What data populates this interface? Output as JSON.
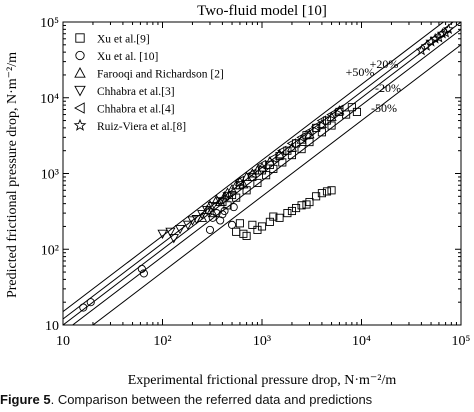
{
  "chart_data": {
    "type": "scatter",
    "title": "Two-fluid model [10]",
    "xlabel": "Experimental frictional pressure drop, N·m⁻²/m",
    "ylabel": "Predicted frictional pressure drop, N·m⁻²/m",
    "xscale": "log",
    "yscale": "log",
    "xlim": [
      10,
      100000
    ],
    "ylim": [
      10,
      100000
    ],
    "x_ticks": [
      10,
      100,
      1000,
      10000,
      100000
    ],
    "y_ticks": [
      10,
      100,
      1000,
      10000,
      100000
    ],
    "x_tick_labels": [
      "10",
      "10²",
      "10³",
      "10⁴",
      "10⁵"
    ],
    "y_tick_labels": [
      "10",
      "10²",
      "10³",
      "10⁴",
      "10⁵"
    ],
    "legend_position": "top-left",
    "reference_lines": [
      {
        "label": "+50%",
        "factor": 1.5
      },
      {
        "label": "+20%",
        "factor": 1.2
      },
      {
        "label": "-20%",
        "factor": 0.8
      },
      {
        "label": "-50%",
        "factor": 0.5
      }
    ],
    "series": [
      {
        "name": "Xu et al.[9]",
        "marker": "square",
        "points": [
          [
            400,
            420
          ],
          [
            450,
            380
          ],
          [
            500,
            520
          ],
          [
            550,
            480
          ],
          [
            600,
            700
          ],
          [
            700,
            600
          ],
          [
            800,
            900
          ],
          [
            900,
            750
          ],
          [
            1000,
            1100
          ],
          [
            1100,
            950
          ],
          [
            1200,
            1300
          ],
          [
            1300,
            1150
          ],
          [
            1500,
            1700
          ],
          [
            1600,
            1400
          ],
          [
            1800,
            2000
          ],
          [
            2000,
            1750
          ],
          [
            2200,
            2500
          ],
          [
            2500,
            2100
          ],
          [
            2800,
            3200
          ],
          [
            3000,
            2600
          ],
          [
            3500,
            4000
          ],
          [
            4000,
            3500
          ],
          [
            4500,
            5000
          ],
          [
            5000,
            4300
          ],
          [
            6000,
            6500
          ],
          [
            7000,
            6000
          ],
          [
            8000,
            7500
          ],
          [
            9000,
            6500
          ],
          [
            550,
            170
          ],
          [
            650,
            160
          ],
          [
            700,
            150
          ],
          [
            900,
            180
          ],
          [
            1200,
            230
          ],
          [
            1500,
            260
          ],
          [
            1800,
            300
          ],
          [
            2000,
            320
          ],
          [
            2500,
            380
          ],
          [
            3000,
            420
          ],
          [
            3500,
            500
          ],
          [
            4000,
            550
          ],
          [
            5000,
            600
          ],
          [
            800,
            210
          ],
          [
            1000,
            200
          ],
          [
            1300,
            270
          ],
          [
            2200,
            350
          ],
          [
            2800,
            390
          ],
          [
            600,
            220
          ],
          [
            4500,
            580
          ]
        ]
      },
      {
        "name": "Xu et al. [10]",
        "marker": "circle",
        "points": [
          [
            16,
            17
          ],
          [
            19,
            20
          ],
          [
            62,
            55
          ],
          [
            65,
            48
          ],
          [
            300,
            180
          ],
          [
            320,
            260
          ],
          [
            350,
            300
          ],
          [
            380,
            240
          ],
          [
            400,
            290
          ],
          [
            420,
            320
          ],
          [
            500,
            210
          ],
          [
            520,
            360
          ]
        ]
      },
      {
        "name": "Farooqi and Richardson [2]",
        "marker": "triangle-up",
        "points": [
          [
            250,
            260
          ],
          [
            280,
            330
          ],
          [
            300,
            380
          ],
          [
            320,
            300
          ],
          [
            350,
            450
          ],
          [
            380,
            420
          ],
          [
            420,
            500
          ],
          [
            450,
            560
          ],
          [
            500,
            620
          ],
          [
            550,
            700
          ],
          [
            600,
            780
          ],
          [
            650,
            720
          ],
          [
            700,
            900
          ],
          [
            800,
            1000
          ],
          [
            900,
            1100
          ],
          [
            1000,
            1200
          ],
          [
            1200,
            1450
          ],
          [
            1500,
            1800
          ],
          [
            2000,
            2200
          ],
          [
            2500,
            2800
          ],
          [
            3000,
            3300
          ],
          [
            4000,
            4500
          ],
          [
            5000,
            5600
          ],
          [
            6000,
            6800
          ]
        ]
      },
      {
        "name": "Chhabra et al.[3]",
        "marker": "triangle-down",
        "points": [
          [
            100,
            160
          ],
          [
            120,
            170
          ],
          [
            130,
            140
          ],
          [
            150,
            185
          ],
          [
            180,
            210
          ],
          [
            200,
            240
          ],
          [
            220,
            250
          ],
          [
            250,
            290
          ],
          [
            280,
            330
          ],
          [
            320,
            370
          ],
          [
            380,
            430
          ],
          [
            450,
            500
          ]
        ]
      },
      {
        "name": "Chhabra et al.[4]",
        "marker": "triangle-left",
        "points": [
          [
            600,
            800
          ],
          [
            800,
            1000
          ],
          [
            1000,
            1300
          ],
          [
            1300,
            1600
          ],
          [
            1600,
            2000
          ],
          [
            2000,
            2500
          ],
          [
            2500,
            3000
          ],
          [
            3000,
            3600
          ],
          [
            3500,
            4200
          ],
          [
            4000,
            5000
          ],
          [
            5000,
            6000
          ],
          [
            6000,
            7000
          ]
        ]
      },
      {
        "name": "Ruiz-Viera et al.[8]",
        "marker": "star",
        "points": [
          [
            40000,
            42000
          ],
          [
            45000,
            48000
          ],
          [
            50000,
            55000
          ],
          [
            55000,
            60000
          ],
          [
            60000,
            62000
          ],
          [
            65000,
            70000
          ],
          [
            70000,
            72000
          ],
          [
            75000,
            80000
          ]
        ]
      }
    ]
  },
  "caption": {
    "prefix": "Figure 5",
    "text": "Comparison between the referred data and predictions"
  }
}
